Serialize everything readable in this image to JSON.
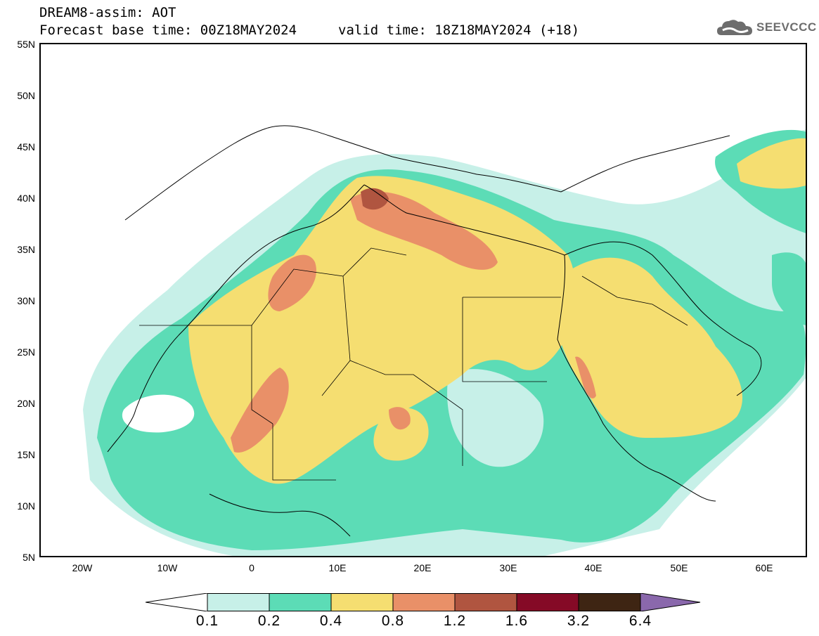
{
  "header": {
    "model_field": "DREAM8-assim: AOT",
    "base_time": "Forecast base time: 00Z18MAY2024",
    "valid_time": "valid time: 18Z18MAY2024 (+18)"
  },
  "logo": {
    "text": "SEEVCCC",
    "icon": "cloud-icon",
    "color": "#6d6d6d"
  },
  "map": {
    "lat_labels": [
      "55N",
      "50N",
      "45N",
      "40N",
      "35N",
      "30N",
      "25N",
      "20N",
      "15N",
      "10N",
      "5N"
    ],
    "lon_labels": [
      "20W",
      "10W",
      "0",
      "10E",
      "20E",
      "30E",
      "40E",
      "50E",
      "60E"
    ],
    "lon_range": [
      -25,
      65
    ],
    "lat_range": [
      5,
      55
    ]
  },
  "colorbar": {
    "labels": [
      "0.1",
      "0.2",
      "0.4",
      "0.8",
      "1.2",
      "1.6",
      "3.2",
      "6.4"
    ],
    "colors": [
      "#ffffff",
      "#c7f0e8",
      "#5cdcb6",
      "#f5de71",
      "#e99068",
      "#b05540",
      "#850a26",
      "#3e2513",
      "#8a68ac"
    ]
  }
}
